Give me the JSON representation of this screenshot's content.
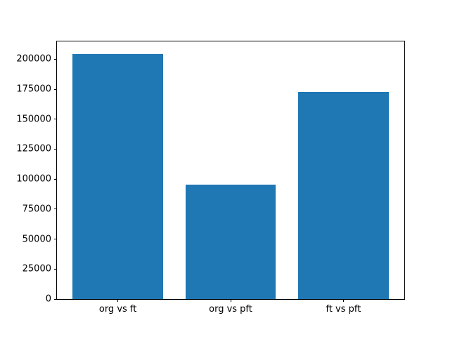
{
  "figure": {
    "background": "#ffffff",
    "text_color": "#000000"
  },
  "chart_data": {
    "type": "bar",
    "title": "",
    "xlabel": "",
    "ylabel": "",
    "categories": [
      "org vs ft",
      "org vs pft",
      "ft vs pft"
    ],
    "values": [
      204500,
      95300,
      172700
    ],
    "bar_color": "#1f77b4",
    "ylim": [
      0,
      214800
    ],
    "yticks": [
      0,
      25000,
      50000,
      75000,
      100000,
      125000,
      150000,
      175000,
      200000
    ],
    "xlim": [
      -0.54,
      2.54
    ],
    "bar_width": 0.8,
    "grid": false,
    "legend": false
  }
}
